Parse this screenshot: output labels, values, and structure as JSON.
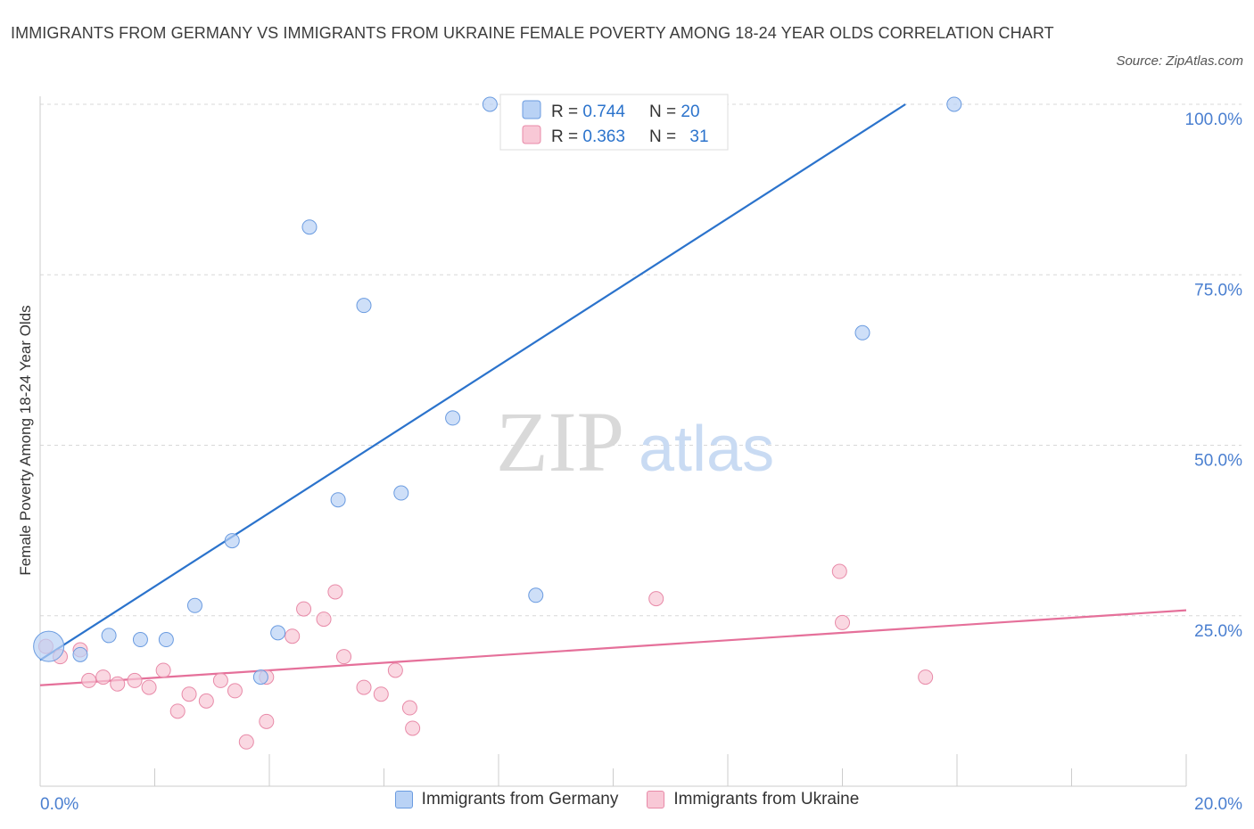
{
  "title": "IMMIGRANTS FROM GERMANY VS IMMIGRANTS FROM UKRAINE FEMALE POVERTY AMONG 18-24 YEAR OLDS CORRELATION CHART",
  "source": "Source: ZipAtlas.com",
  "watermark": {
    "zip": "ZIP",
    "atlas": "atlas"
  },
  "colors": {
    "germany_fill": "#b9d2f5",
    "germany_stroke": "#6a9be0",
    "germany_line": "#2b73cc",
    "ukraine_fill": "#f8c8d6",
    "ukraine_stroke": "#e88aa8",
    "ukraine_line": "#e5709a",
    "tick_label": "#4a7fd0",
    "grid": "#d8d8d8"
  },
  "stats": [
    {
      "r_label": "R = ",
      "r": "0.744",
      "n_label": "N = ",
      "n": "20"
    },
    {
      "r_label": "R = ",
      "r": "0.363",
      "n_label": "N = ",
      "n": "31"
    }
  ],
  "chart_data": {
    "type": "scatter",
    "xlabel": "",
    "ylabel": "Female Poverty Among 18-24 Year Olds",
    "xlim": [
      0,
      20
    ],
    "ylim": [
      0,
      100
    ],
    "x_tick_labels": [
      "0.0%",
      "20.0%"
    ],
    "y_ticks": [
      25,
      50,
      75,
      100
    ],
    "y_tick_labels": [
      "25.0%",
      "50.0%",
      "75.0%",
      "100.0%"
    ],
    "grid": true,
    "legend_position": "bottom-center",
    "series": [
      {
        "name": "Immigrants from Germany",
        "points": [
          [
            0.15,
            20.5,
            "large"
          ],
          [
            0.7,
            19.3
          ],
          [
            1.2,
            22.1
          ],
          [
            1.75,
            21.5
          ],
          [
            2.2,
            21.5
          ],
          [
            2.7,
            26.5
          ],
          [
            3.35,
            36.0
          ],
          [
            3.85,
            16.0
          ],
          [
            4.15,
            22.5
          ],
          [
            4.7,
            82.0
          ],
          [
            5.2,
            42.0
          ],
          [
            5.65,
            70.5
          ],
          [
            6.3,
            43.0
          ],
          [
            7.2,
            54.0
          ],
          [
            7.85,
            100.0
          ],
          [
            8.25,
            100.0
          ],
          [
            8.65,
            28.0
          ],
          [
            11.85,
            100.0
          ],
          [
            14.35,
            66.5
          ],
          [
            15.95,
            100.0
          ]
        ],
        "trend": {
          "x0": 0,
          "y0": 18.5,
          "x1": 15.1,
          "y1": 100.0
        }
      },
      {
        "name": "Immigrants from Ukraine",
        "points": [
          [
            0.1,
            20.5
          ],
          [
            0.35,
            19.0
          ],
          [
            0.7,
            20.0
          ],
          [
            0.85,
            15.5
          ],
          [
            1.1,
            16.0
          ],
          [
            1.35,
            15.0
          ],
          [
            1.65,
            15.5
          ],
          [
            1.9,
            14.5
          ],
          [
            2.15,
            17.0
          ],
          [
            2.4,
            11.0
          ],
          [
            2.6,
            13.5
          ],
          [
            2.9,
            12.5
          ],
          [
            3.15,
            15.5
          ],
          [
            3.4,
            14.0
          ],
          [
            3.6,
            6.5
          ],
          [
            3.95,
            16.0
          ],
          [
            3.95,
            9.5
          ],
          [
            4.4,
            22.0
          ],
          [
            4.6,
            26.0
          ],
          [
            4.95,
            24.5
          ],
          [
            5.15,
            28.5
          ],
          [
            5.3,
            19.0
          ],
          [
            5.65,
            14.5
          ],
          [
            5.95,
            13.5
          ],
          [
            6.2,
            17.0
          ],
          [
            6.45,
            11.5
          ],
          [
            6.5,
            8.5
          ],
          [
            10.75,
            27.5
          ],
          [
            13.95,
            31.5
          ],
          [
            14.0,
            24.0
          ],
          [
            15.45,
            16.0
          ]
        ],
        "trend": {
          "x0": 0,
          "y0": 14.8,
          "x1": 20,
          "y1": 25.8
        }
      }
    ]
  }
}
